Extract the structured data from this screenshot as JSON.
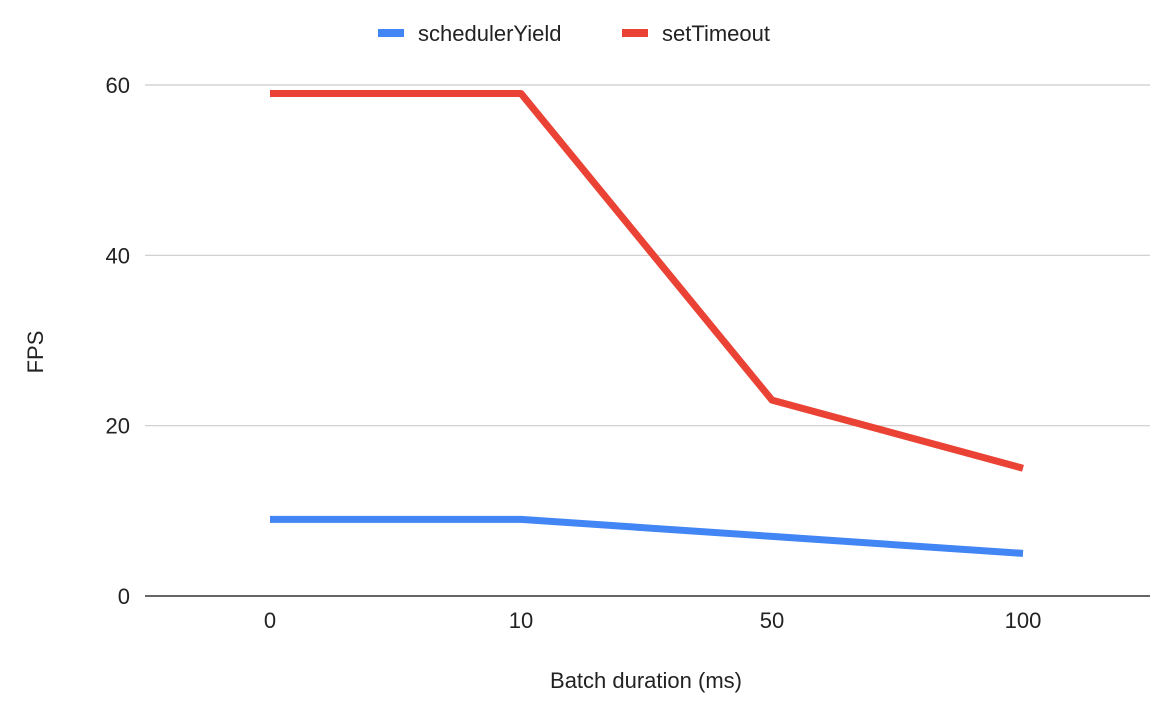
{
  "chart_data": {
    "type": "line",
    "title": "",
    "xlabel": "Batch duration (ms)",
    "ylabel": "FPS",
    "categories": [
      "0",
      "10",
      "50",
      "100"
    ],
    "ylim": [
      0,
      60
    ],
    "yticks": [
      0,
      20,
      40,
      60
    ],
    "grid": true,
    "legend_position": "top",
    "series": [
      {
        "name": "schedulerYield",
        "color": "#4285f4",
        "values": [
          9,
          9,
          7,
          5
        ]
      },
      {
        "name": "setTimeout",
        "color": "#ea4335",
        "values": [
          59,
          59,
          23,
          15
        ]
      }
    ]
  }
}
